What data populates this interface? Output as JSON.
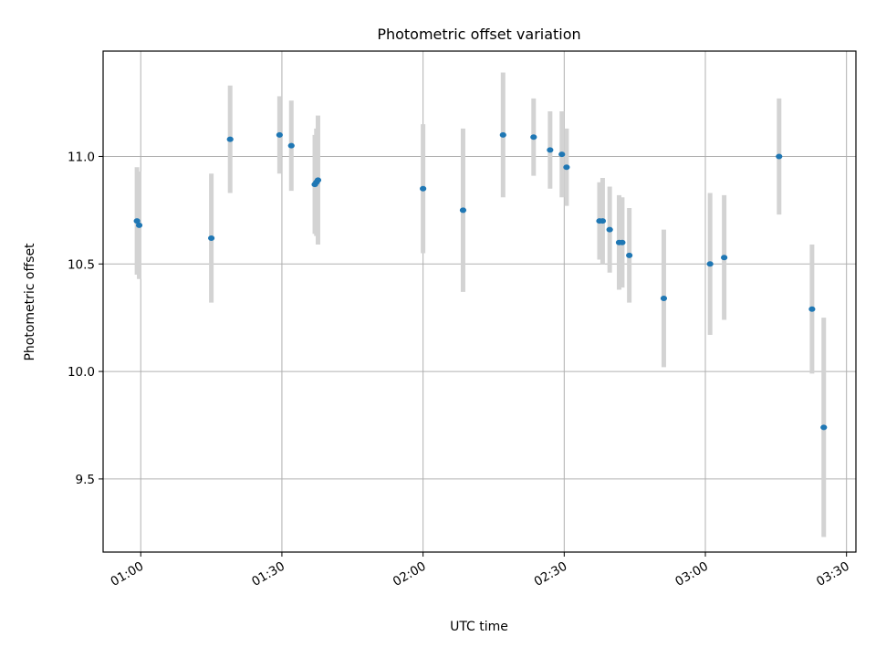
{
  "chart_data": {
    "type": "scatter",
    "title": "Photometric offset variation",
    "xlabel": "UTC time",
    "ylabel": "Photometric offset",
    "x_unit": "UTC hh:mm",
    "xlim": [
      "00:52",
      "03:32"
    ],
    "ylim": [
      9.16,
      11.49
    ],
    "x_ticks": [
      "01:00",
      "01:30",
      "02:00",
      "02:30",
      "03:00",
      "03:30"
    ],
    "y_ticks": [
      9.5,
      10.0,
      10.5,
      11.0
    ],
    "y_tick_labels": [
      "9.5",
      "10.0",
      "10.5",
      "11.0"
    ],
    "grid": true,
    "legend": "none",
    "colors": {
      "points": "#1f77b4",
      "error_bars": "#d3d3d3",
      "grid": "#b0b0b0",
      "axes": "#000000"
    },
    "points": [
      {
        "x": "00:59:12",
        "y": 10.7,
        "err": 0.25
      },
      {
        "x": "00:59:40",
        "y": 10.68,
        "err": 0.25
      },
      {
        "x": "01:15:00",
        "y": 10.62,
        "err": 0.3
      },
      {
        "x": "01:19:00",
        "y": 11.08,
        "err": 0.25
      },
      {
        "x": "01:29:30",
        "y": 11.1,
        "err": 0.18
      },
      {
        "x": "01:32:00",
        "y": 11.05,
        "err": 0.21
      },
      {
        "x": "01:37:00",
        "y": 10.87,
        "err": 0.23
      },
      {
        "x": "01:37:20",
        "y": 10.88,
        "err": 0.25
      },
      {
        "x": "01:37:40",
        "y": 10.89,
        "err": 0.3
      },
      {
        "x": "02:00:00",
        "y": 10.85,
        "err": 0.3
      },
      {
        "x": "02:08:30",
        "y": 10.75,
        "err": 0.38
      },
      {
        "x": "02:17:00",
        "y": 11.1,
        "err": 0.29
      },
      {
        "x": "02:23:30",
        "y": 11.09,
        "err": 0.18
      },
      {
        "x": "02:27:00",
        "y": 11.03,
        "err": 0.18
      },
      {
        "x": "02:29:30",
        "y": 11.01,
        "err": 0.2
      },
      {
        "x": "02:30:30",
        "y": 10.95,
        "err": 0.18
      },
      {
        "x": "02:37:30",
        "y": 10.7,
        "err": 0.18
      },
      {
        "x": "02:38:10",
        "y": 10.7,
        "err": 0.2
      },
      {
        "x": "02:39:40",
        "y": 10.66,
        "err": 0.2
      },
      {
        "x": "02:41:40",
        "y": 10.6,
        "err": 0.22
      },
      {
        "x": "02:42:20",
        "y": 10.6,
        "err": 0.21
      },
      {
        "x": "02:43:50",
        "y": 10.54,
        "err": 0.22
      },
      {
        "x": "02:51:10",
        "y": 10.34,
        "err": 0.32
      },
      {
        "x": "03:01:00",
        "y": 10.5,
        "err": 0.33
      },
      {
        "x": "03:04:00",
        "y": 10.53,
        "err": 0.29
      },
      {
        "x": "03:15:40",
        "y": 11.0,
        "err": 0.27
      },
      {
        "x": "03:22:40",
        "y": 10.29,
        "err": 0.3
      },
      {
        "x": "03:25:10",
        "y": 9.74,
        "err": 0.51
      }
    ]
  }
}
